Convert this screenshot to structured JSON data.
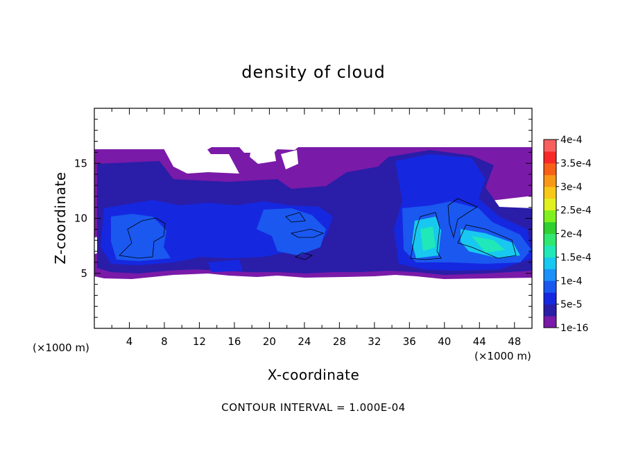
{
  "chart_data": {
    "type": "heatmap",
    "title": "density of cloud",
    "xlabel": "X-coordinate",
    "ylabel": "Z-coordinate",
    "x_unit": "(×1000 m)",
    "xlim": [
      0,
      50
    ],
    "ylim": [
      0,
      20
    ],
    "x_ticks": [
      4,
      8,
      12,
      16,
      20,
      24,
      28,
      32,
      36,
      40,
      44,
      48
    ],
    "y_ticks": [
      5,
      10,
      15
    ],
    "footer": "CONTOUR INTERVAL = 1.000E-04",
    "colorbar": {
      "labels": [
        "1e-16",
        "5e-5",
        "1e-4",
        "1.5e-4",
        "2e-4",
        "2.5e-4",
        "3e-4",
        "3.5e-4",
        "4e-4"
      ],
      "colors": [
        "#7a1aa8",
        "#2a1da8",
        "#1528e0",
        "#1a58f0",
        "#1a90f8",
        "#18c8f0",
        "#20e8b8",
        "#30e870",
        "#30d030",
        "#80f020",
        "#e0f020",
        "#f8c818",
        "#f89818",
        "#f86018",
        "#f82828",
        "#f86060"
      ]
    },
    "cloud_regions": [
      {
        "level": 1,
        "color": "#7a1aa8",
        "x": [
          0,
          50
        ],
        "z": [
          4.5,
          16.3
        ]
      },
      {
        "level": 2,
        "color": "#2a1da8",
        "x": [
          0.5,
          50
        ],
        "z": [
          5,
          15.8
        ]
      },
      {
        "level": 3,
        "color": "#1528e0",
        "x": [
          1,
          50
        ],
        "z": [
          5.5,
          15
        ]
      },
      {
        "level": 4,
        "color": "#1a58f0",
        "x": [
          2,
          49
        ],
        "z": [
          6,
          11.5
        ]
      },
      {
        "level": 5,
        "color": "#18c8f0",
        "x": [
          37,
          47
        ],
        "z": [
          6.5,
          10
        ]
      }
    ],
    "contour_value": 0.0001
  }
}
